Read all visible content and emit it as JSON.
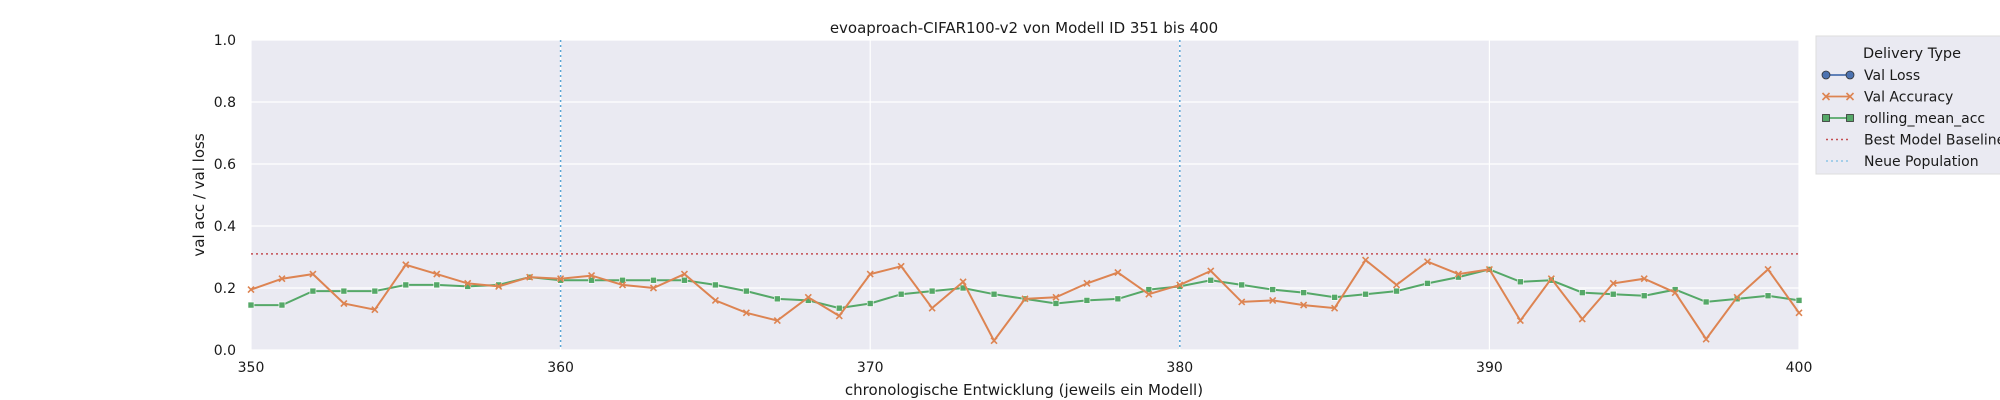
{
  "chart_data": {
    "type": "line",
    "title": "evoaproach-CIFAR100-v2 von Modell ID 351 bis 400",
    "xlabel": "chronologische Entwicklung (jeweils ein Modell)",
    "ylabel": "val acc / val loss",
    "xlim": [
      350,
      400
    ],
    "ylim": [
      0,
      1
    ],
    "x_ticks": [
      "350",
      "360",
      "370",
      "380",
      "390",
      "400"
    ],
    "y_ticks": [
      "0.0",
      "0.2",
      "0.4",
      "0.6",
      "0.8",
      "1.0"
    ],
    "grid": true,
    "background_color": "#eaeaf2",
    "legend": {
      "title": "Delivery Type",
      "position": "outside-top-right",
      "entries": [
        {
          "label": "Val Loss",
          "color": "#4c72b0",
          "marker": "circle",
          "style": "line"
        },
        {
          "label": "Val Accuracy",
          "color": "#dd8452",
          "marker": "x",
          "style": "line"
        },
        {
          "label": "rolling_mean_acc",
          "color": "#55a868",
          "marker": "square",
          "style": "line"
        },
        {
          "label": "Best Model Baseline",
          "color": "#c44e52",
          "marker": "none",
          "style": "dotted"
        },
        {
          "label": "Neue Population",
          "color": "#8cc5e6",
          "marker": "none",
          "style": "dotted"
        }
      ]
    },
    "x": [
      350,
      351,
      352,
      353,
      354,
      355,
      356,
      357,
      358,
      359,
      360,
      361,
      362,
      363,
      364,
      365,
      366,
      367,
      368,
      369,
      370,
      371,
      372,
      373,
      374,
      375,
      376,
      377,
      378,
      379,
      380,
      381,
      382,
      383,
      384,
      385,
      386,
      387,
      388,
      389,
      390,
      391,
      392,
      393,
      394,
      395,
      396,
      397,
      398,
      399,
      400
    ],
    "series": [
      {
        "name": "Val Accuracy",
        "color": "#dd8452",
        "values": [
          0.195,
          0.23,
          0.245,
          0.15,
          0.13,
          0.275,
          0.245,
          0.215,
          0.205,
          0.235,
          0.23,
          0.24,
          0.21,
          0.2,
          0.245,
          0.16,
          0.12,
          0.095,
          0.17,
          0.11,
          0.245,
          0.27,
          0.135,
          0.22,
          0.03,
          0.165,
          0.17,
          0.215,
          0.25,
          0.18,
          0.21,
          0.255,
          0.155,
          0.16,
          0.145,
          0.135,
          0.29,
          0.21,
          0.285,
          0.245,
          0.26,
          0.095,
          0.23,
          0.1,
          0.215,
          0.23,
          0.185,
          0.035,
          0.17,
          0.26,
          0.12
        ]
      },
      {
        "name": "rolling_mean_acc",
        "color": "#55a868",
        "values": [
          0.145,
          0.145,
          0.19,
          0.19,
          0.19,
          0.21,
          0.21,
          0.205,
          0.21,
          0.235,
          0.225,
          0.225,
          0.225,
          0.225,
          0.225,
          0.21,
          0.19,
          0.165,
          0.16,
          0.135,
          0.15,
          0.18,
          0.19,
          0.2,
          0.18,
          0.165,
          0.15,
          0.16,
          0.165,
          0.195,
          0.205,
          0.225,
          0.21,
          0.195,
          0.185,
          0.17,
          0.18,
          0.19,
          0.215,
          0.235,
          0.26,
          0.22,
          0.225,
          0.185,
          0.18,
          0.175,
          0.195,
          0.155,
          0.165,
          0.175,
          0.16
        ]
      }
    ],
    "baseline": {
      "name": "Best Model Baseline",
      "y": 0.31,
      "color": "#c44e52"
    },
    "population_markers": {
      "name": "Neue Population",
      "x": [
        360,
        380
      ],
      "color": "#5aa6d6"
    }
  }
}
